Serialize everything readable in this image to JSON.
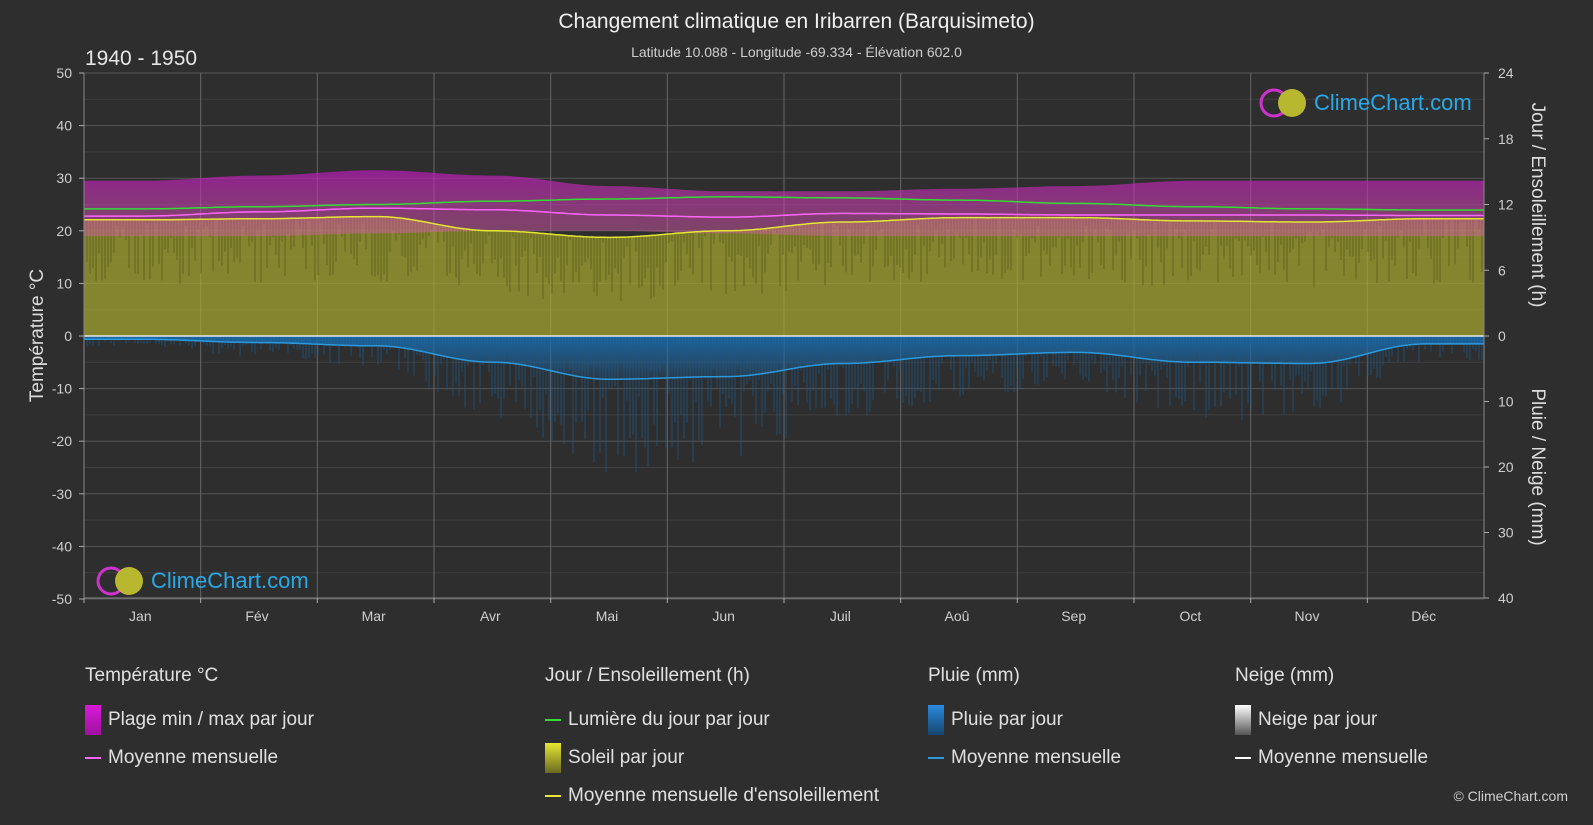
{
  "header": {
    "title": "Changement climatique en Iribarren (Barquisimeto)",
    "subtitle": "Latitude 10.088 - Longitude -69.334 - Élévation 602.0",
    "period": "1940 - 1950"
  },
  "brand": {
    "logo_text": "ClimeChart.com",
    "copyright": "© ClimeChart.com"
  },
  "colors": {
    "background": "#2e2e2e",
    "temp_range": "#d81ad8",
    "temp_mean": "#ff66ff",
    "daylight": "#33dd33",
    "sunshine_fill": "#a8a830",
    "sunshine_mean": "#e6e633",
    "rain": "#1a6fb0",
    "rain_mean": "#2a9ae0",
    "snow_mean": "#ffffff",
    "brand": "#28a9e8"
  },
  "chart_data": {
    "type": "area",
    "months": [
      "Jan",
      "Fév",
      "Mar",
      "Avr",
      "Mai",
      "Jun",
      "Juil",
      "Aoû",
      "Sep",
      "Oct",
      "Nov",
      "Déc"
    ],
    "axes": {
      "left": {
        "label": "Température °C",
        "ticks": [
          50,
          40,
          30,
          20,
          10,
          0,
          -10,
          -20,
          -30,
          -40,
          -50
        ],
        "range": [
          -50,
          50
        ]
      },
      "right_top": {
        "label": "Jour / Ensoleillement (h)",
        "ticks": [
          24,
          18,
          12,
          6,
          0
        ],
        "range": [
          0,
          24
        ]
      },
      "right_bottom": {
        "label": "Pluie / Neige (mm)",
        "ticks": [
          0,
          10,
          20,
          30,
          40
        ],
        "range": [
          0,
          40
        ]
      }
    },
    "grid": true,
    "series": [
      {
        "name": "Plage min / max par jour",
        "kind": "band",
        "min": [
          19.0,
          19.0,
          19.5,
          20.0,
          20.0,
          19.5,
          19.0,
          19.0,
          19.0,
          19.0,
          19.0,
          19.0
        ],
        "max": [
          29.5,
          30.5,
          31.5,
          30.5,
          28.5,
          27.5,
          27.5,
          28.0,
          28.5,
          29.5,
          29.5,
          29.5
        ]
      },
      {
        "name": "Moyenne mensuelle",
        "kind": "temp-mean",
        "values": [
          22.8,
          23.6,
          24.3,
          24.0,
          23.0,
          22.6,
          23.3,
          23.2,
          23.0,
          23.0,
          23.0,
          22.9
        ]
      },
      {
        "name": "Lumière du jour par jour",
        "kind": "daylight",
        "values": [
          11.6,
          11.8,
          12.0,
          12.3,
          12.5,
          12.7,
          12.6,
          12.4,
          12.1,
          11.8,
          11.6,
          11.5
        ]
      },
      {
        "name": "Moyenne mensuelle d'ensoleillement",
        "kind": "sunshine-mean",
        "values": [
          10.6,
          10.7,
          10.9,
          9.6,
          9.0,
          9.6,
          10.4,
          10.8,
          10.8,
          10.5,
          10.4,
          10.7
        ]
      },
      {
        "name": "Moyenne mensuelle",
        "kind": "rain-mean",
        "values": [
          0.5,
          1.0,
          1.5,
          4.0,
          6.6,
          6.2,
          4.2,
          3.0,
          2.5,
          4.0,
          4.2,
          1.2
        ]
      },
      {
        "name": "Moyenne mensuelle",
        "kind": "snow-mean",
        "values": [
          0,
          0,
          0,
          0,
          0,
          0,
          0,
          0,
          0,
          0,
          0,
          0
        ]
      }
    ]
  },
  "legend": {
    "temperature": {
      "heading": "Température °C",
      "items": [
        "Plage min / max par jour",
        "Moyenne mensuelle"
      ]
    },
    "sun": {
      "heading": "Jour / Ensoleillement (h)",
      "items": [
        "Lumière du jour par jour",
        "Soleil par jour",
        "Moyenne mensuelle d'ensoleillement"
      ]
    },
    "rain": {
      "heading": "Pluie (mm)",
      "items": [
        "Pluie par jour",
        "Moyenne mensuelle"
      ]
    },
    "snow": {
      "heading": "Neige (mm)",
      "items": [
        "Neige par jour",
        "Moyenne mensuelle"
      ]
    }
  }
}
